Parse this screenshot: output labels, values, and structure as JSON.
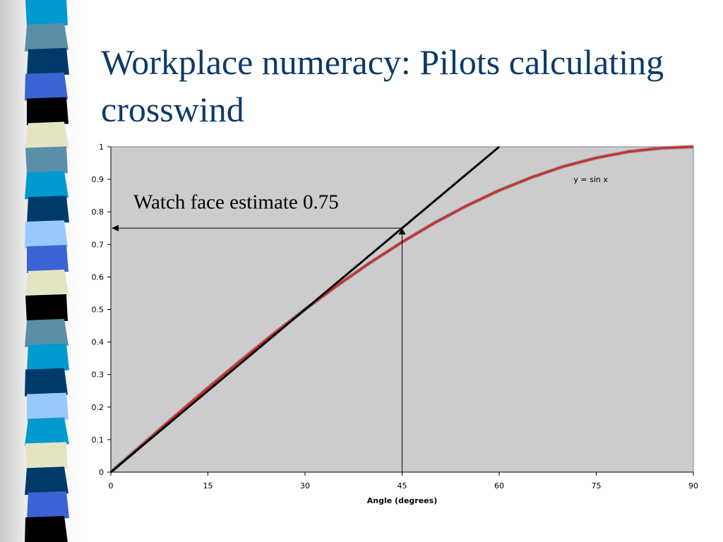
{
  "slide": {
    "title": "Workplace numeracy: Pilots calculating crosswind"
  },
  "decor": {
    "stripe_colors": [
      "#0099d0",
      "#5b8fa8",
      "#003a6b",
      "#3b63d4",
      "#000000",
      "#e4e4c4",
      "#5b8fa8",
      "#0099d0",
      "#003a6b",
      "#99c8ff",
      "#3b63d4",
      "#e4e4c4",
      "#000000",
      "#5b8fa8",
      "#0099d0",
      "#003a6b",
      "#99c8ff",
      "#0099d0",
      "#e4e4c4",
      "#003a6b",
      "#3b63d4",
      "#000000"
    ]
  },
  "chart_data": {
    "type": "line",
    "xlabel": "Angle (degrees)",
    "ylabel": "",
    "xlim": [
      0,
      90
    ],
    "ylim": [
      0,
      1
    ],
    "x_ticks": [
      "0",
      "15",
      "30",
      "45",
      "60",
      "75",
      "90"
    ],
    "y_ticks": [
      "0",
      "0.1",
      "0.2",
      "0.3",
      "0.4",
      "0.5",
      "0.6",
      "0.7",
      "0.8",
      "0.9",
      "1"
    ],
    "grid": false,
    "plot_background": "#cccccc",
    "series": [
      {
        "name": "y = sin x",
        "color": "#e02020",
        "x": [
          0,
          5,
          10,
          15,
          20,
          25,
          30,
          35,
          40,
          45,
          50,
          55,
          60,
          65,
          70,
          75,
          80,
          85,
          90
        ],
        "y": [
          0,
          0.087,
          0.174,
          0.259,
          0.342,
          0.423,
          0.5,
          0.574,
          0.643,
          0.707,
          0.766,
          0.819,
          0.866,
          0.906,
          0.94,
          0.966,
          0.985,
          0.996,
          1
        ]
      },
      {
        "color": "#000000",
        "x": [
          0,
          60
        ],
        "y": [
          0,
          1
        ]
      }
    ],
    "annotations": {
      "curve_label": "y = sin x",
      "estimate_label": "Watch face estimate 0.75",
      "estimate_point": {
        "x": 45,
        "y": 0.75
      }
    }
  }
}
